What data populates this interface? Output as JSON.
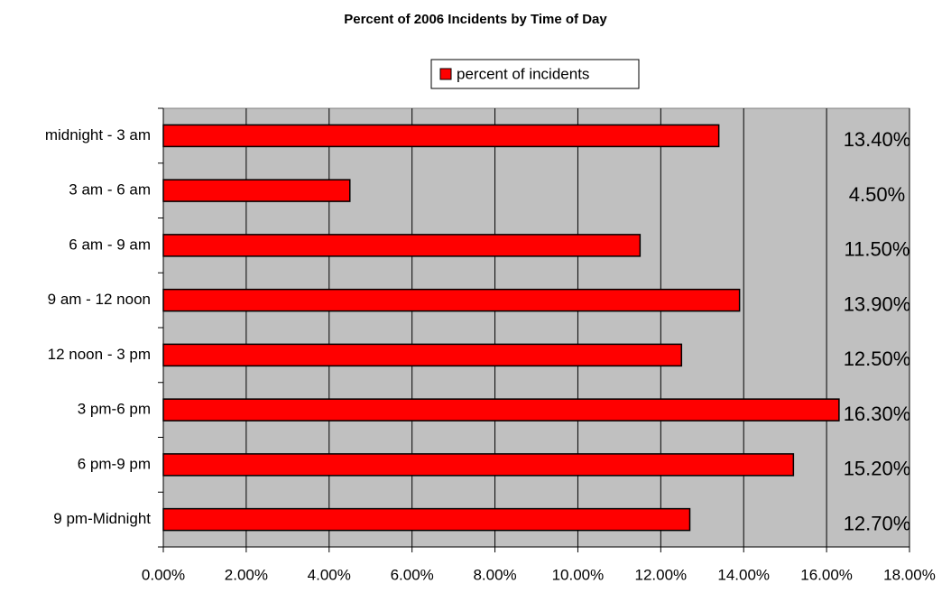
{
  "chart_data": {
    "type": "hbar",
    "title": "Percent of 2006 Incidents by Time of Day",
    "categories": [
      "midnight - 3 am",
      "3 am - 6 am",
      "6 am - 9 am",
      "9 am - 12 noon",
      "12 noon - 3 pm",
      "3 pm-6 pm",
      "6 pm-9 pm",
      "9 pm-Midnight"
    ],
    "series": [
      {
        "name": "percent of incidents",
        "color": "#ff0000",
        "values": [
          13.4,
          4.5,
          11.5,
          13.9,
          12.5,
          16.3,
          15.2,
          12.7
        ],
        "value_labels": [
          "13.40%",
          "4.50%",
          "11.50%",
          "13.90%",
          "12.50%",
          "16.30%",
          "15.20%",
          "12.70%"
        ]
      }
    ],
    "xlim": [
      0,
      18
    ],
    "xticks": [
      {
        "value": 0,
        "label": "0.00%"
      },
      {
        "value": 2,
        "label": "2.00%"
      },
      {
        "value": 4,
        "label": "4.00%"
      },
      {
        "value": 6,
        "label": "6.00%"
      },
      {
        "value": 8,
        "label": "8.00%"
      },
      {
        "value": 10,
        "label": "10.00%"
      },
      {
        "value": 12,
        "label": "12.00%"
      },
      {
        "value": 14,
        "label": "14.00%"
      },
      {
        "value": 16,
        "label": "16.00%"
      },
      {
        "value": 18,
        "label": "18.00%"
      }
    ],
    "grid": true,
    "plot_background": "#c0c0c0",
    "legend": "top"
  }
}
